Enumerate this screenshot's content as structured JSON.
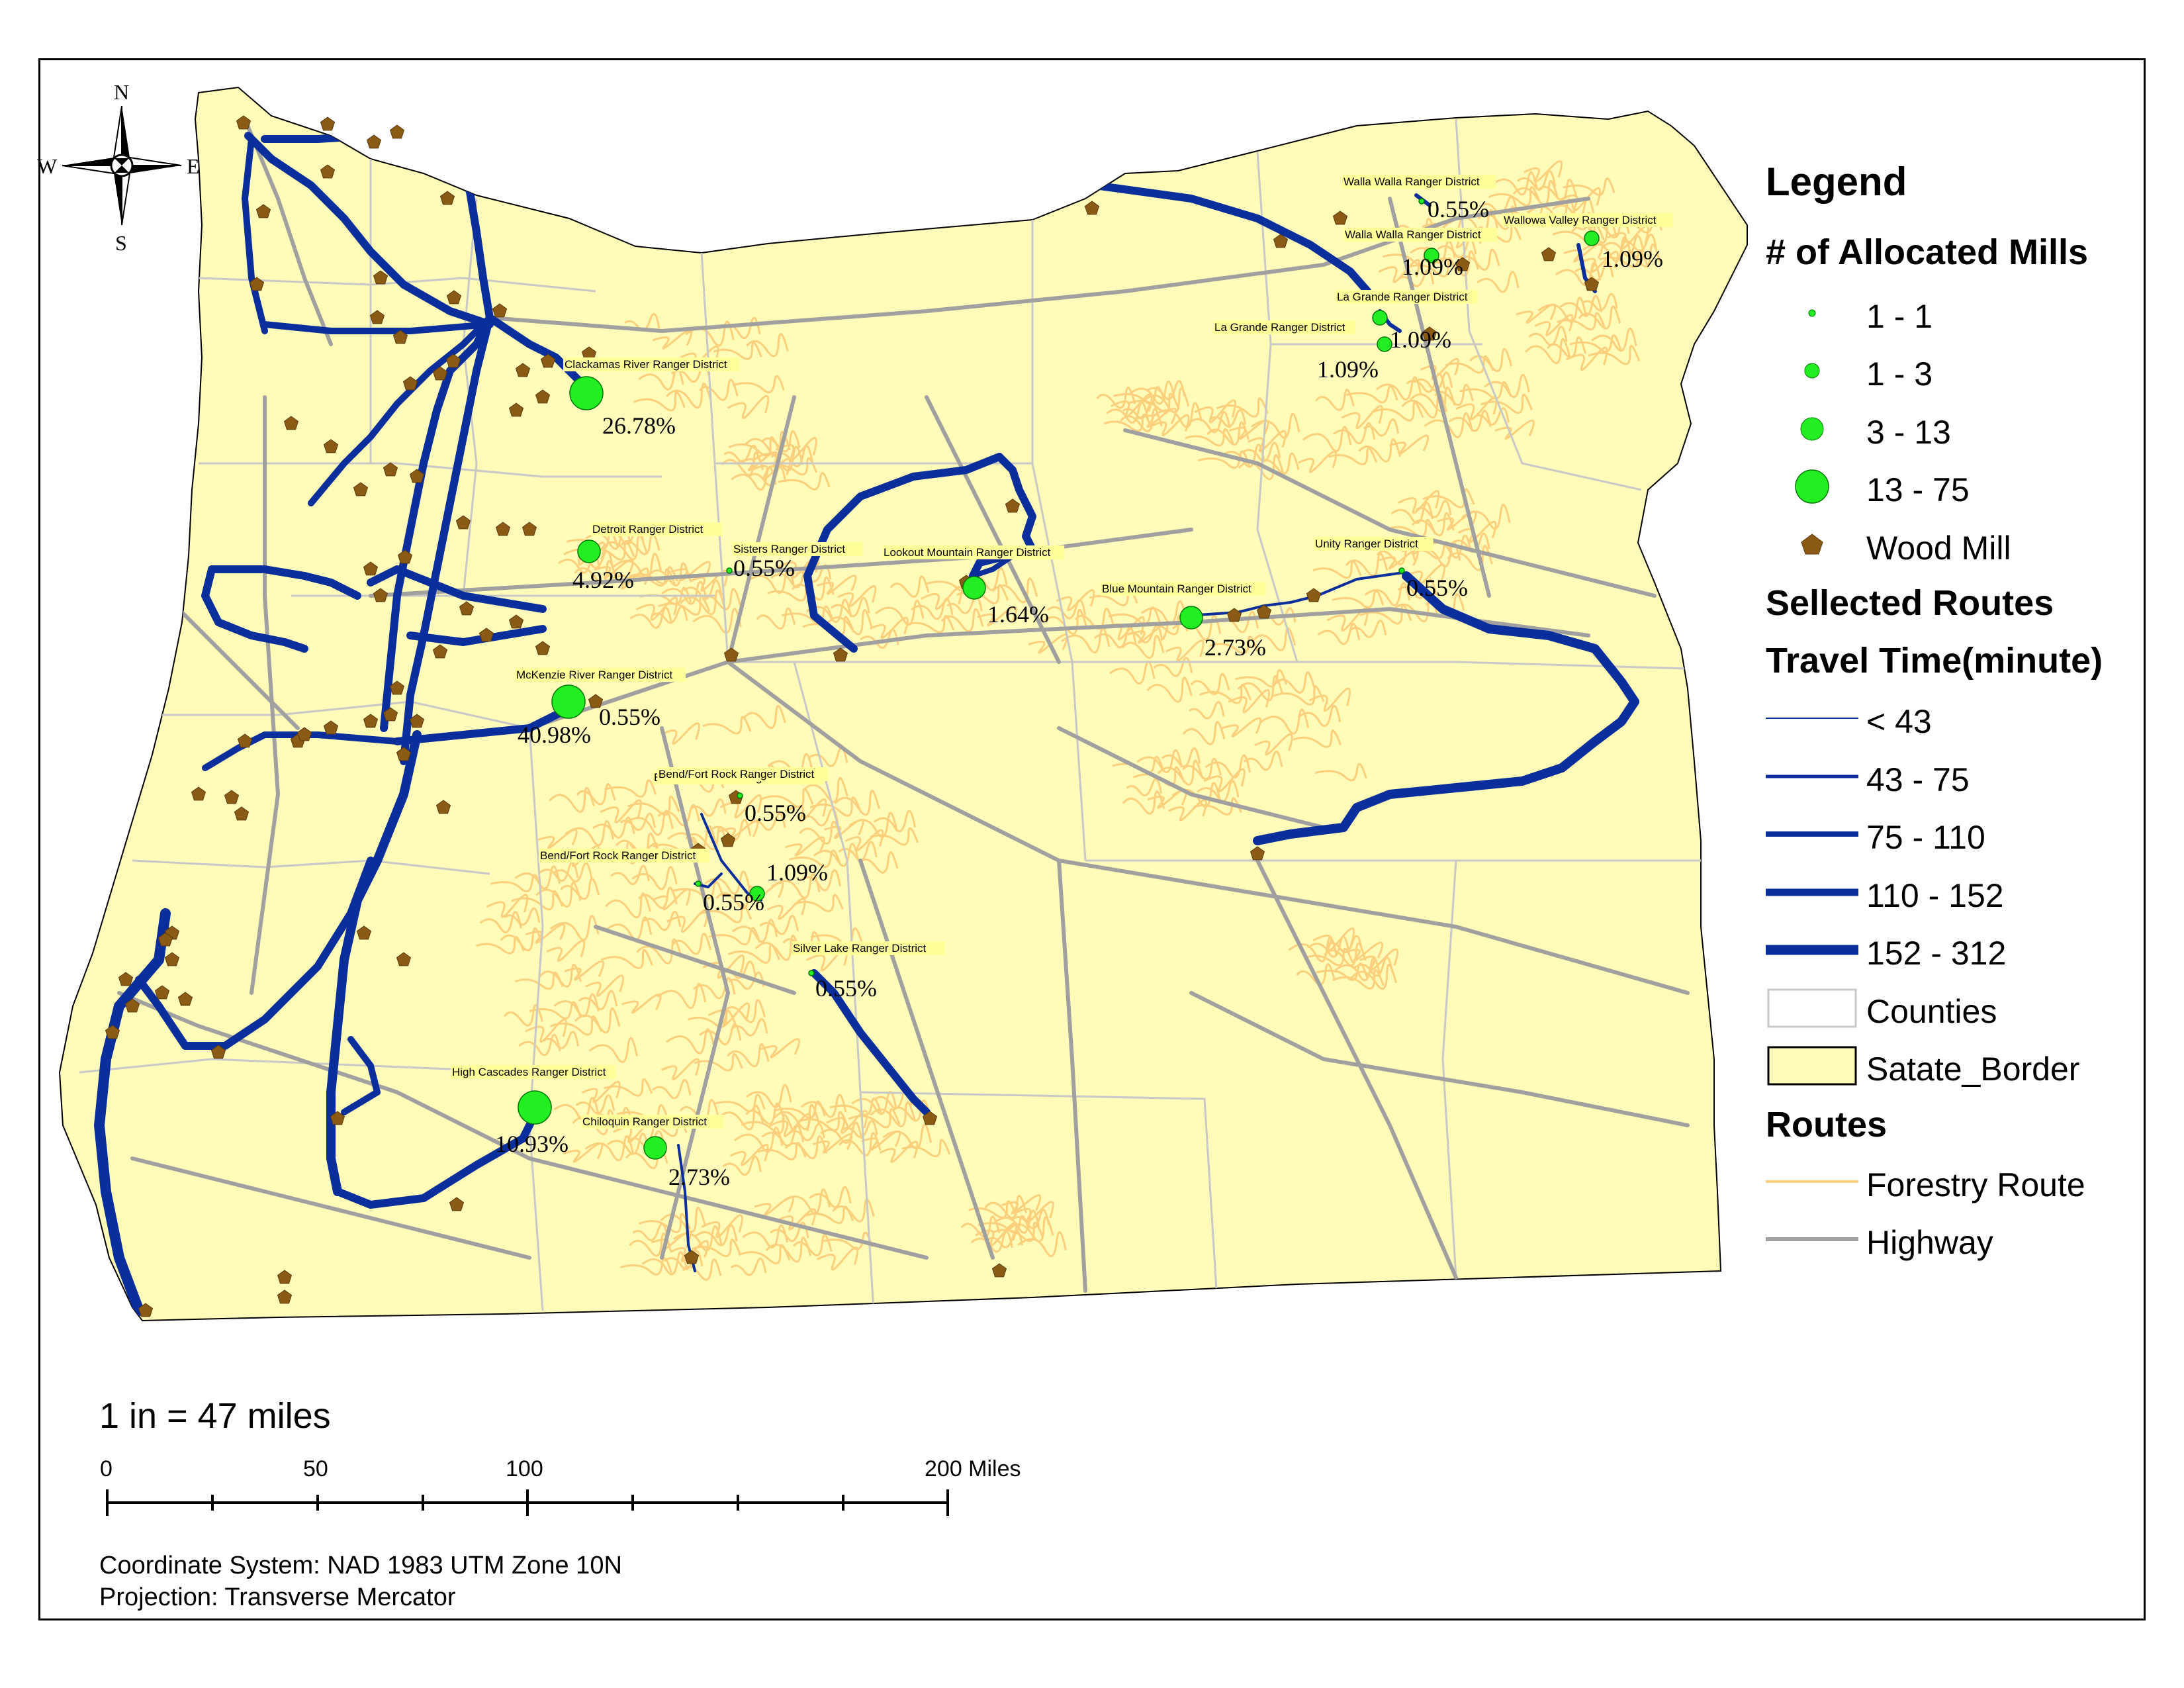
{
  "colors": {
    "state_fill": "#FFFBB8",
    "forestry": "#FCCF7C",
    "highway": "#A0A0A0",
    "county": "#C8C8C8",
    "route": "#0A2E9B",
    "mill_site": "#22EE22",
    "wood_mill": "#8B5A14",
    "district_label_bg": "#FFFF99"
  },
  "compass": {
    "n": "N",
    "s": "S",
    "e": "E",
    "w": "W"
  },
  "legend": {
    "title": "Legend",
    "mills_title": "# of  Allocated Mills",
    "mills_classes": [
      "1 - 1",
      "1 - 3",
      "3 - 13",
      "13 - 75"
    ],
    "wood_mill": "Wood Mill",
    "routes_title_1": "Sellected Routes",
    "routes_title_2": "Travel Time(minute)",
    "time_classes": [
      "< 43",
      "43 - 75",
      "75 - 110",
      "110 - 152",
      "152 - 312"
    ],
    "counties": "Counties",
    "state_border": "Satate_Border",
    "routes_title": "Routes",
    "forestry_route": "Forestry Route",
    "highway": "Highway"
  },
  "scale": {
    "text": "1 in = 47 miles",
    "ticks": [
      "0",
      "50",
      "100",
      "200 Miles"
    ]
  },
  "coordinate_system": "Coordinate System: NAD 1983 UTM Zone 10N",
  "projection": "Projection: Transverse Mercator",
  "districts": [
    {
      "name": "Walla Walla Ranger District",
      "pct": "0.55%"
    },
    {
      "name": "Walla Walla Ranger District",
      "pct": "1.09%"
    },
    {
      "name": "Wallowa Valley Ranger District",
      "pct": "1.09%"
    },
    {
      "name": "La Grande Ranger District",
      "pct": "1.09%"
    },
    {
      "name": "La Grande Ranger District",
      "pct": "1.09%"
    },
    {
      "name": "Clackamas River Ranger District",
      "pct": "26.78%"
    },
    {
      "name": "Detroit Ranger District",
      "pct": "4.92%"
    },
    {
      "name": "Sisters Ranger District",
      "pct": "0.55%"
    },
    {
      "name": "Lookout Mountain Ranger District",
      "pct": "1.64%"
    },
    {
      "name": "Blue Mountain Ranger District",
      "pct": "2.73%"
    },
    {
      "name": "Unity Ranger District",
      "pct": "0.55%"
    },
    {
      "name": "McKenzie River Ranger District",
      "pct": "40.98%"
    },
    {
      "name": "McKenzie River Ranger District",
      "pct": "0.55%"
    },
    {
      "name": "Bend/Fort Rock Ranger District",
      "pct": "0.55%"
    },
    {
      "name": "Bend/Fort Rock Ranger District",
      "pct": "1.09%"
    },
    {
      "name": "Bend/Fort Rock Ranger District",
      "pct": "0.55%"
    },
    {
      "name": "Silver Lake Ranger District",
      "pct": "0.55%"
    },
    {
      "name": "High Cascades Ranger District",
      "pct": "10.93%"
    },
    {
      "name": "Chiloquin Ranger District",
      "pct": "2.73%"
    }
  ]
}
